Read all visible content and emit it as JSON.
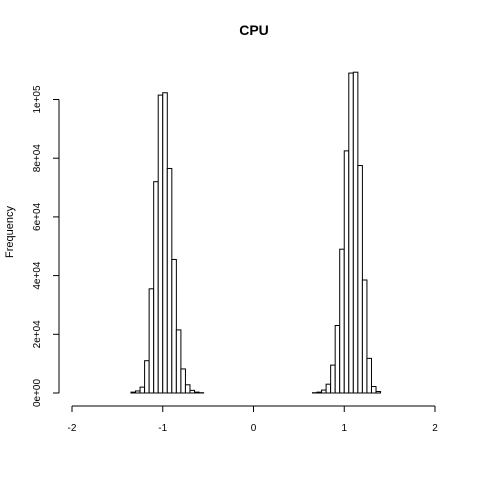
{
  "chart_data": {
    "type": "histogram",
    "title": "CPU",
    "xlabel": "",
    "ylabel": "Frequency",
    "xlim": [
      -2,
      2
    ],
    "ylim": [
      0,
      110000
    ],
    "x_ticks": [
      "-2",
      "-1",
      "0",
      "1",
      "2"
    ],
    "y_ticks": [
      "0e+00",
      "2e+04",
      "4e+04",
      "6e+04",
      "8e+04",
      "1e+05"
    ],
    "bin_width": 0.05,
    "bin_start": -1.35,
    "values": [
      300,
      700,
      2000,
      11000,
      35500,
      72000,
      101500,
      102300,
      76500,
      45500,
      21500,
      8200,
      2800,
      900,
      300,
      100,
      0,
      0,
      0,
      0,
      0,
      0,
      0,
      0,
      0,
      0,
      0,
      0,
      0,
      0,
      0,
      0,
      0,
      0,
      0,
      0,
      0,
      0,
      0,
      0,
      100,
      300,
      1000,
      3000,
      9500,
      23000,
      49000,
      82500,
      109000,
      109300,
      77500,
      38500,
      11800,
      2200,
      500
    ]
  }
}
